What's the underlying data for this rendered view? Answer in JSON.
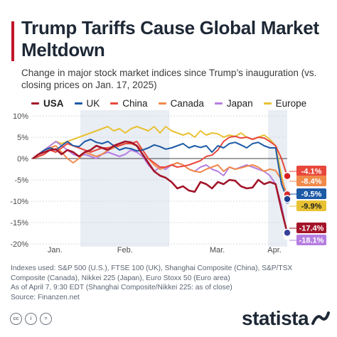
{
  "header": {
    "title": "Trump Tariffs Cause Global Market Meltdown",
    "subtitle": "Change in major stock market indices since Trump’s inauguration (vs. closing prices on Jan. 17, 2025)"
  },
  "colors": {
    "USA": "#a3152a",
    "UK": "#1d5aa6",
    "China": "#e8483b",
    "Canada": "#f08a4b",
    "Japan": "#b57ee0",
    "Europe": "#e8c232",
    "shade": "#e9edf4",
    "grid": "#d7dbe1",
    "title": "#1e2836"
  },
  "legend": [
    {
      "name": "USA",
      "bold": true
    },
    {
      "name": "UK",
      "bold": false
    },
    {
      "name": "China",
      "bold": false
    },
    {
      "name": "Canada",
      "bold": false
    },
    {
      "name": "Japan",
      "bold": false
    },
    {
      "name": "Europe",
      "bold": false
    }
  ],
  "chart_data": {
    "type": "line",
    "x_tick_labels": [
      "Jan.",
      "Feb.",
      "Mar.",
      "Apr."
    ],
    "y_ticks": [
      10,
      5,
      0,
      -5,
      -10,
      -15,
      -20
    ],
    "y_tick_labels": [
      "10%",
      "5%",
      "0%",
      "-5%",
      "-10%",
      "-15%",
      "-20%"
    ],
    "ylim": [
      -20,
      10
    ],
    "x_range": [
      "2025-01-17",
      "2025-04-07"
    ],
    "shaded_months": [
      "Feb.",
      "Apr."
    ],
    "grid": true,
    "series": [
      {
        "name": "USA",
        "end_label": "-17.4%",
        "values": [
          0,
          1,
          1.5,
          2,
          2.2,
          1,
          2,
          1.5,
          0.5,
          1.5,
          2,
          3,
          2.5,
          2,
          3,
          3.5,
          4,
          3.8,
          3,
          1,
          -1,
          -3,
          -4,
          -4.5,
          -5.5,
          -7,
          -6.5,
          -7.5,
          -7.8,
          -5.5,
          -6,
          -7,
          -5.5,
          -6,
          -5,
          -5.2,
          -6.5,
          -7,
          -6.8,
          -5,
          -6,
          -5.5,
          -6,
          -12,
          -17.4
        ]
      },
      {
        "name": "UK",
        "end_label": "-9.5%",
        "values": [
          0,
          1,
          2,
          2.5,
          2,
          3,
          4,
          3,
          2.8,
          4,
          4.5,
          3.8,
          3.5,
          4,
          3,
          2,
          2.5,
          2.3,
          1.8,
          2,
          2.5,
          3.2,
          2.8,
          2.2,
          2.5,
          3,
          3.5,
          2.5,
          3,
          2.6,
          3,
          1.5,
          3,
          2.5,
          3.5,
          3.8,
          3.2,
          2.5,
          3.5,
          3.8,
          3,
          2.5,
          2.5,
          -6,
          -9.5
        ]
      },
      {
        "name": "China",
        "end_label": "-4.1%",
        "values": [
          0,
          0.5,
          1,
          2,
          1.5,
          2.5,
          3.5,
          3,
          2.5,
          2,
          1.5,
          2,
          2.5,
          2.5,
          2.8,
          3,
          3.5,
          3.5,
          4,
          2,
          0,
          -1,
          -2,
          -2,
          -1.5,
          -2,
          -1.8,
          -1.5,
          -1,
          -0.5,
          0.5,
          0.8,
          2,
          4,
          5,
          5.2,
          4.8,
          5,
          4.5,
          5,
          4.8,
          4,
          3,
          0,
          -4.1
        ]
      },
      {
        "name": "Canada",
        "end_label": "-8.4%",
        "values": [
          0,
          1,
          2,
          2.5,
          3,
          1.5,
          0,
          -1,
          0,
          1.5,
          1,
          0.5,
          1,
          2,
          2.5,
          3,
          3.5,
          3.5,
          3,
          2,
          0,
          -1.5,
          -2.5,
          -2,
          -1.5,
          -1,
          -1.5,
          -2.5,
          -3,
          -3.2,
          -2.5,
          -2,
          -1.5,
          -3,
          -2,
          -2.5,
          -2.2,
          -1.8,
          -1.5,
          -2,
          -3,
          -2.5,
          -2.8,
          -5,
          -8.4
        ]
      },
      {
        "name": "Japan",
        "end_label": "-18.1%",
        "values": [
          0,
          1,
          2,
          3,
          4,
          3,
          2,
          1,
          0.5,
          1,
          0.5,
          0,
          1,
          1.5,
          1,
          0.5,
          1,
          2,
          1.5,
          0.5,
          -1.5,
          -3,
          -2,
          -2.5,
          -1.5,
          -1,
          -1.5,
          -2.5,
          -3,
          -2,
          -1.5,
          -2.5,
          -3,
          -4,
          -2,
          -2.5,
          -2,
          -1.5,
          -2,
          -2.5,
          -3,
          -4,
          -6,
          -11,
          -18.1
        ]
      },
      {
        "name": "Europe",
        "end_label": "-9.9%",
        "values": [
          0,
          1,
          2,
          3,
          4,
          3.5,
          4,
          4.5,
          5,
          5.5,
          6,
          6.5,
          7,
          7.5,
          6.5,
          7,
          6,
          7,
          7.5,
          7,
          6.5,
          7.5,
          6,
          7.5,
          6.5,
          6,
          5.5,
          6,
          5,
          6.5,
          5.5,
          6,
          5.8,
          5,
          5.5,
          5.2,
          6,
          5,
          4.5,
          5,
          5.5,
          4.5,
          3,
          -4,
          -9.9
        ]
      }
    ]
  },
  "footnote": {
    "indexes": "Indexes used: S&P 500 (U.S.), FTSE 100 (UK), Shanghai Composite (China), S&P/TSX Composite (Canada), Nikkei 225 (Japan), Euro Stoxx 50 (Euro area)",
    "timing": "As of April 7, 9:30 EDT (Shanghai Composite/Nikkei 225: as of close)",
    "source": "Source: Finanzen.net"
  },
  "footer": {
    "icons": [
      "cc-icon",
      "by-icon",
      "equals-icon"
    ],
    "cc_text": [
      "cc",
      "i",
      "="
    ],
    "logo": "statista"
  }
}
